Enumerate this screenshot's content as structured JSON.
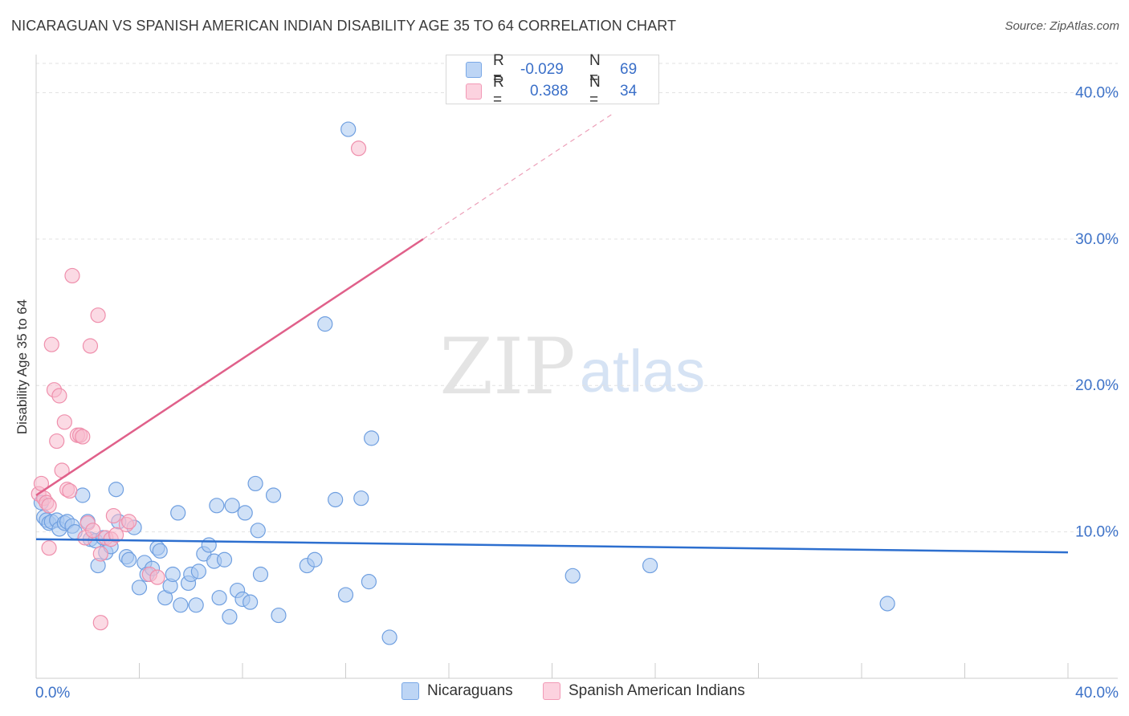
{
  "header": {
    "title": "NICARAGUAN VS SPANISH AMERICAN INDIAN DISABILITY AGE 35 TO 64 CORRELATION CHART",
    "source": "Source: ZipAtlas.com"
  },
  "watermark": {
    "zip": "ZIP",
    "atlas": "atlas"
  },
  "legend_top": {
    "rows": [
      {
        "r_label": "R =",
        "r_value": "-0.029",
        "n_label": "N =",
        "n_value": "69"
      },
      {
        "r_label": "R =",
        "r_value": "0.388",
        "n_label": "N =",
        "n_value": "34"
      }
    ]
  },
  "legend_bottom": {
    "items": [
      "Nicaraguans",
      "Spanish American Indians"
    ]
  },
  "colors": {
    "blue_fill": "#a9c8f0",
    "blue_stroke": "#6f9fe0",
    "blue_line": "#2d6fcf",
    "pink_fill": "#f8bccd",
    "pink_stroke": "#ef8fac",
    "pink_line": "#e0608a",
    "tick_label": "#3d72c8",
    "grid": "#e2e2e2"
  },
  "chart_data": {
    "type": "scatter",
    "title": "NICARAGUAN VS SPANISH AMERICAN INDIAN DISABILITY AGE 35 TO 64 CORRELATION CHART",
    "xlabel": "",
    "ylabel": "Disability Age 35 to 64",
    "xlim": [
      0,
      40
    ],
    "ylim": [
      0,
      42
    ],
    "x_tick_labels": [
      "0.0%",
      "40.0%"
    ],
    "y_ticks": [
      10,
      20,
      30,
      40
    ],
    "y_tick_labels": [
      "10.0%",
      "20.0%",
      "30.0%",
      "40.0%"
    ],
    "grid": true,
    "series": [
      {
        "name": "Nicaraguans",
        "r": -0.029,
        "n": 69,
        "trend": {
          "x0": 0,
          "y0": 9.5,
          "x1": 40,
          "y1": 8.6,
          "dashed_to": null
        },
        "points": [
          [
            0.2,
            12.0
          ],
          [
            0.3,
            11.0
          ],
          [
            0.4,
            10.8
          ],
          [
            0.5,
            10.6
          ],
          [
            0.6,
            10.7
          ],
          [
            0.8,
            10.8
          ],
          [
            0.9,
            10.2
          ],
          [
            1.1,
            10.6
          ],
          [
            1.2,
            10.7
          ],
          [
            1.4,
            10.4
          ],
          [
            1.5,
            10.0
          ],
          [
            1.8,
            12.5
          ],
          [
            2.0,
            10.7
          ],
          [
            2.1,
            9.5
          ],
          [
            2.3,
            9.4
          ],
          [
            2.4,
            7.7
          ],
          [
            2.6,
            9.6
          ],
          [
            2.7,
            8.6
          ],
          [
            2.9,
            9.0
          ],
          [
            3.1,
            12.9
          ],
          [
            3.2,
            10.7
          ],
          [
            3.5,
            8.3
          ],
          [
            3.6,
            8.1
          ],
          [
            3.8,
            10.3
          ],
          [
            4.0,
            6.2
          ],
          [
            4.2,
            7.9
          ],
          [
            4.3,
            7.1
          ],
          [
            4.5,
            7.5
          ],
          [
            4.7,
            8.9
          ],
          [
            4.8,
            8.7
          ],
          [
            5.0,
            5.5
          ],
          [
            5.2,
            6.3
          ],
          [
            5.3,
            7.1
          ],
          [
            5.5,
            11.3
          ],
          [
            5.6,
            5.0
          ],
          [
            5.9,
            6.5
          ],
          [
            6.0,
            7.1
          ],
          [
            6.2,
            5.0
          ],
          [
            6.3,
            7.3
          ],
          [
            6.5,
            8.5
          ],
          [
            6.7,
            9.1
          ],
          [
            6.9,
            8.0
          ],
          [
            7.0,
            11.8
          ],
          [
            7.1,
            5.5
          ],
          [
            7.3,
            8.1
          ],
          [
            7.5,
            4.2
          ],
          [
            7.6,
            11.8
          ],
          [
            7.8,
            6.0
          ],
          [
            8.0,
            5.4
          ],
          [
            8.1,
            11.3
          ],
          [
            8.3,
            5.2
          ],
          [
            8.5,
            13.3
          ],
          [
            8.6,
            10.1
          ],
          [
            8.7,
            7.1
          ],
          [
            9.2,
            12.5
          ],
          [
            9.4,
            4.3
          ],
          [
            10.5,
            7.7
          ],
          [
            10.8,
            8.1
          ],
          [
            11.2,
            24.2
          ],
          [
            11.6,
            12.2
          ],
          [
            12.0,
            5.7
          ],
          [
            12.1,
            37.5
          ],
          [
            12.6,
            12.3
          ],
          [
            12.9,
            6.6
          ],
          [
            13.0,
            16.4
          ],
          [
            13.7,
            2.8
          ],
          [
            20.8,
            7.0
          ],
          [
            23.8,
            7.7
          ],
          [
            33.0,
            5.1
          ]
        ]
      },
      {
        "name": "Spanish American Indians",
        "r": 0.388,
        "n": 34,
        "trend": {
          "x0": 0,
          "y0": 12.5,
          "x1": 15,
          "y1": 30.0,
          "dashed_to": {
            "x": 22.3,
            "y": 38.5
          }
        },
        "points": [
          [
            0.1,
            12.6
          ],
          [
            0.2,
            13.3
          ],
          [
            0.3,
            12.3
          ],
          [
            0.4,
            12.0
          ],
          [
            0.5,
            11.8
          ],
          [
            0.5,
            8.9
          ],
          [
            0.6,
            22.8
          ],
          [
            0.7,
            19.7
          ],
          [
            0.8,
            16.2
          ],
          [
            0.9,
            19.3
          ],
          [
            1.0,
            14.2
          ],
          [
            1.1,
            17.5
          ],
          [
            1.2,
            12.9
          ],
          [
            1.3,
            12.8
          ],
          [
            1.4,
            27.5
          ],
          [
            1.6,
            16.6
          ],
          [
            1.7,
            16.6
          ],
          [
            1.8,
            16.5
          ],
          [
            1.9,
            9.6
          ],
          [
            2.0,
            10.6
          ],
          [
            2.1,
            22.7
          ],
          [
            2.2,
            10.1
          ],
          [
            2.4,
            24.8
          ],
          [
            2.5,
            8.5
          ],
          [
            2.5,
            3.8
          ],
          [
            2.7,
            9.6
          ],
          [
            2.9,
            9.5
          ],
          [
            3.0,
            11.1
          ],
          [
            3.1,
            9.8
          ],
          [
            3.5,
            10.5
          ],
          [
            3.6,
            10.7
          ],
          [
            4.4,
            7.1
          ],
          [
            4.7,
            6.9
          ],
          [
            12.5,
            36.2
          ]
        ]
      }
    ]
  }
}
